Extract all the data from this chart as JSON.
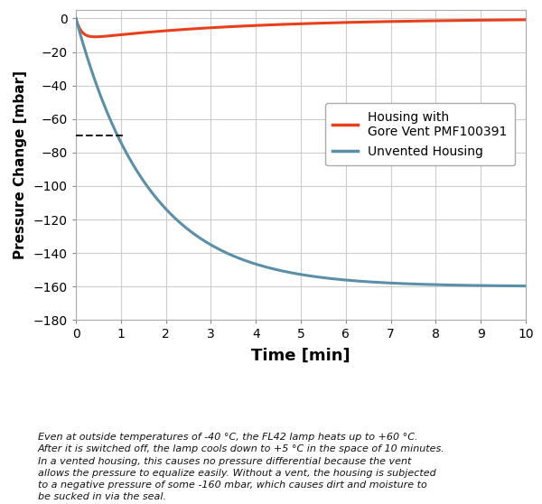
{
  "xlabel": "Time [min]",
  "ylabel": "Pressure Change [mbar]",
  "xlim": [
    0,
    10
  ],
  "ylim": [
    -180,
    5
  ],
  "yticks": [
    0,
    -20,
    -40,
    -60,
    -80,
    -100,
    -120,
    -140,
    -160,
    -180
  ],
  "xticks": [
    0,
    1,
    2,
    3,
    4,
    5,
    6,
    7,
    8,
    9,
    10
  ],
  "vented_color": "#E8401C",
  "unvented_color": "#5B8FA8",
  "dashed_line_color": "#222222",
  "dashed_y": -70,
  "dashed_x_start": 0.0,
  "dashed_x_end": 1.05,
  "legend_vented": "Housing with\nGore Vent PMF100391",
  "legend_unvented": "Unvented Housing",
  "caption": "Even at outside temperatures of -40 °C, the FL42 lamp heats up to +60 °C.\nAfter it is switched off, the lamp cools down to +5 °C in the space of 10 minutes.\nIn a vented housing, this causes no pressure differential because the vent\nallows the pressure to equalize easily. Without a vent, the housing is subjected\nto a negative pressure of some -160 mbar, which causes dirt and moisture to\nbe sucked in via the seal.",
  "background_color": "#ffffff",
  "grid_color": "#cccccc",
  "vented_linewidth": 2.2,
  "unvented_linewidth": 2.2
}
